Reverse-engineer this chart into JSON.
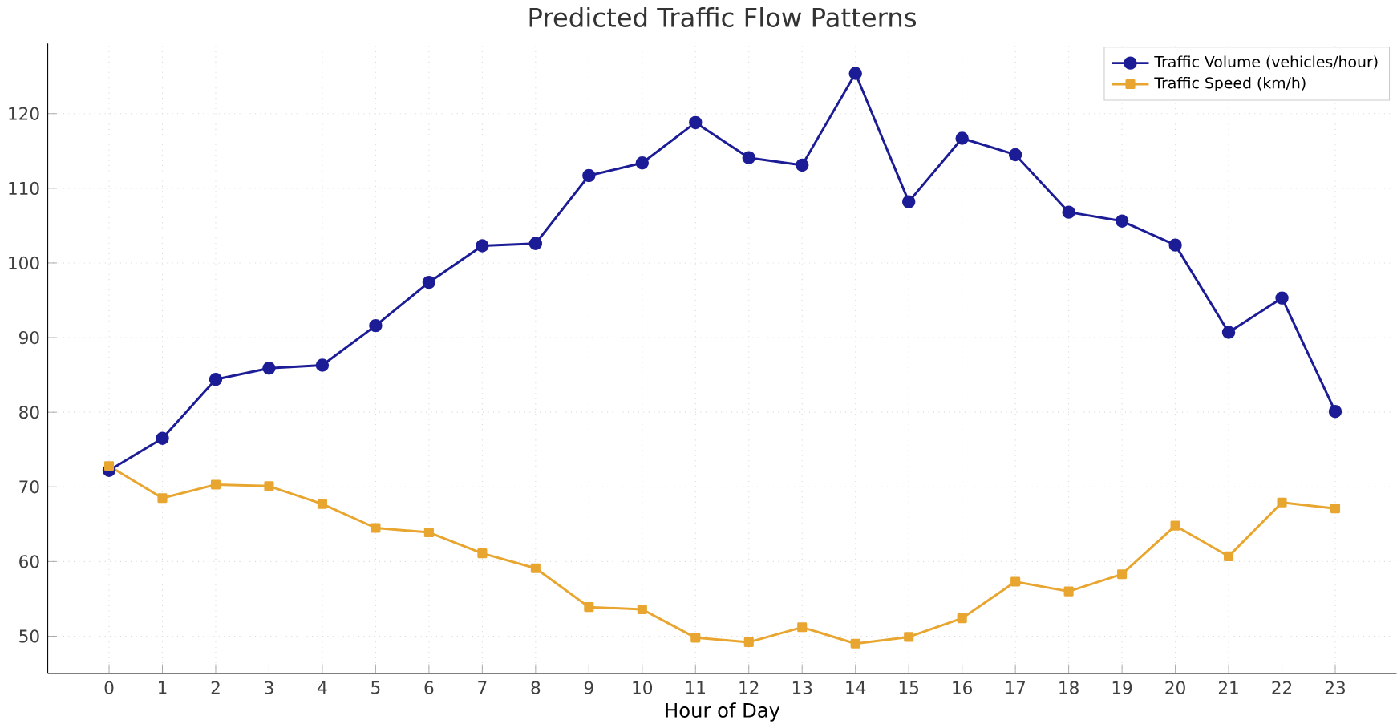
{
  "chart_data": {
    "type": "line",
    "title": "Predicted Traffic Flow Patterns",
    "xlabel": "Hour of Day",
    "x": [
      0,
      1,
      2,
      3,
      4,
      5,
      6,
      7,
      8,
      9,
      10,
      11,
      12,
      13,
      14,
      15,
      16,
      17,
      18,
      19,
      20,
      21,
      22,
      23
    ],
    "series": [
      {
        "name": "Traffic Volume (vehicles/hour)",
        "color": "#1c1c96",
        "marker": "circle",
        "values": [
          72.2,
          76.5,
          84.4,
          85.9,
          86.3,
          91.6,
          97.4,
          102.3,
          102.6,
          111.7,
          113.4,
          118.8,
          114.1,
          113.1,
          125.4,
          108.2,
          116.7,
          114.5,
          106.8,
          105.6,
          102.4,
          90.7,
          95.3,
          80.1
        ]
      },
      {
        "name": "Traffic Speed (km/h)",
        "color": "#e8a630",
        "marker": "square",
        "values": [
          72.8,
          68.5,
          70.3,
          70.1,
          67.7,
          64.5,
          63.9,
          61.1,
          59.1,
          53.9,
          53.6,
          49.8,
          49.2,
          51.2,
          49.0,
          49.9,
          52.4,
          57.3,
          56.0,
          58.3,
          64.8,
          60.7,
          67.9,
          67.1
        ]
      }
    ],
    "xlim": [
      -1.15,
      24.15
    ],
    "ylim": [
      45,
      129.4
    ],
    "xticks": [
      0,
      1,
      2,
      3,
      4,
      5,
      6,
      7,
      8,
      9,
      10,
      11,
      12,
      13,
      14,
      15,
      16,
      17,
      18,
      19,
      20,
      21,
      22,
      23
    ],
    "yticks": [
      50,
      60,
      70,
      80,
      90,
      100,
      110,
      120
    ],
    "grid": true,
    "legend": "top right",
    "line_style": "solid"
  }
}
